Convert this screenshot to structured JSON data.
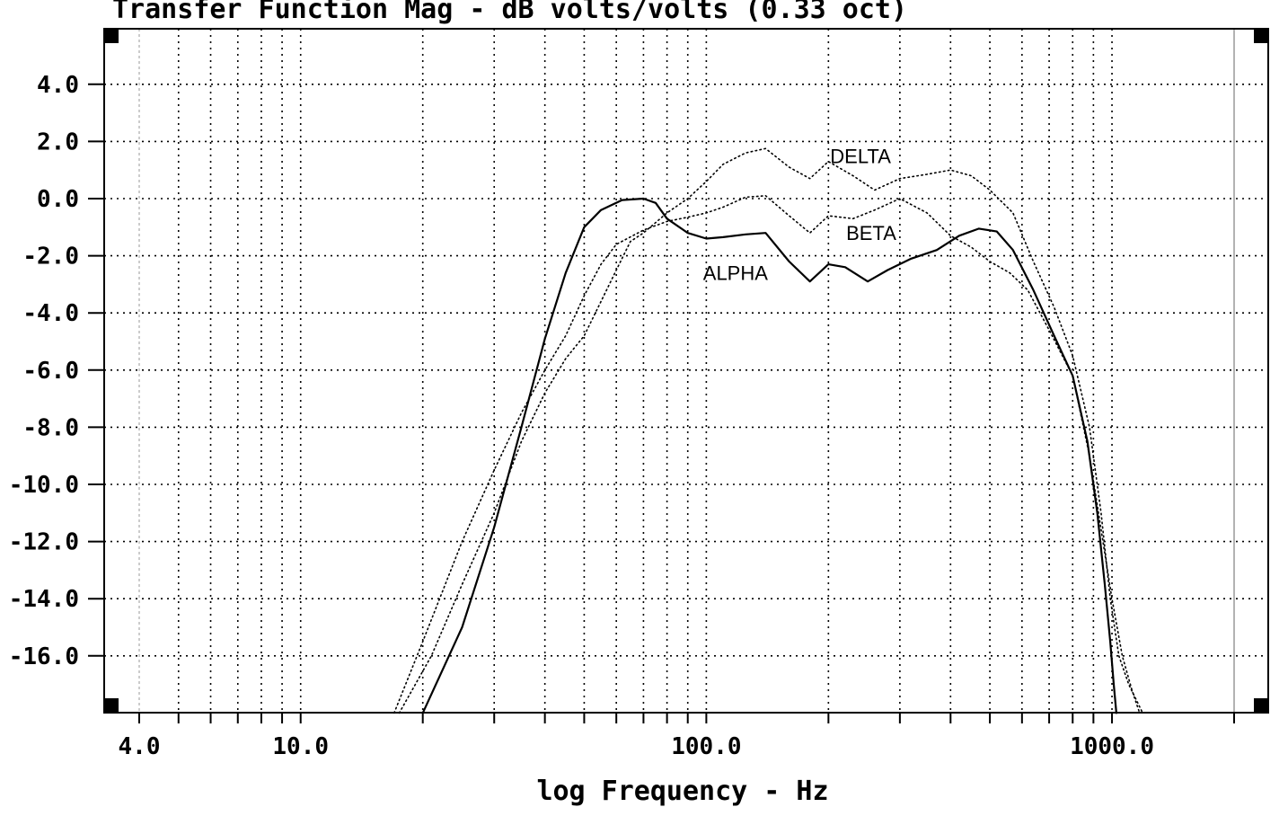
{
  "chart_data": {
    "type": "line",
    "title": "Transfer Function Mag - dB volts/volts (0.33 oct)",
    "xlabel": "log Frequency - Hz",
    "ylabel": "",
    "x_scale": "log",
    "xlim": [
      3.9,
      2300
    ],
    "ylim": [
      -18,
      5
    ],
    "grid": true,
    "xticks": [
      {
        "value": 4,
        "label": "4.0"
      },
      {
        "value": 10,
        "label": "10.0"
      },
      {
        "value": 100,
        "label": "100.0"
      },
      {
        "value": 1000,
        "label": "1000.0"
      }
    ],
    "yticks": [
      {
        "value": 4,
        "label": "4.0"
      },
      {
        "value": 2,
        "label": "2.0"
      },
      {
        "value": 0,
        "label": "0.0"
      },
      {
        "value": -2,
        "label": "-2.0"
      },
      {
        "value": -4,
        "label": "-4.0"
      },
      {
        "value": -6,
        "label": "-6.0"
      },
      {
        "value": -8,
        "label": "-8.0"
      },
      {
        "value": -10,
        "label": "-10.0"
      },
      {
        "value": -12,
        "label": "-12.0"
      },
      {
        "value": -14,
        "label": "-14.0"
      },
      {
        "value": -16,
        "label": "-16.0"
      }
    ],
    "series": [
      {
        "name": "ALPHA",
        "style": "solid",
        "label_at": [
          118,
          -2.6
        ],
        "points": [
          [
            20,
            -18
          ],
          [
            25,
            -15
          ],
          [
            30,
            -11.5
          ],
          [
            35,
            -8
          ],
          [
            40,
            -4.9
          ],
          [
            45,
            -2.6
          ],
          [
            50,
            -1
          ],
          [
            55,
            -0.4
          ],
          [
            62,
            -0.05
          ],
          [
            70,
            0
          ],
          [
            75,
            -0.15
          ],
          [
            80,
            -0.7
          ],
          [
            90,
            -1.2
          ],
          [
            100,
            -1.4
          ],
          [
            110,
            -1.35
          ],
          [
            125,
            -1.25
          ],
          [
            140,
            -1.2
          ],
          [
            160,
            -2.2
          ],
          [
            180,
            -2.9
          ],
          [
            200,
            -2.3
          ],
          [
            220,
            -2.4
          ],
          [
            250,
            -2.9
          ],
          [
            280,
            -2.5
          ],
          [
            320,
            -2.1
          ],
          [
            370,
            -1.8
          ],
          [
            420,
            -1.3
          ],
          [
            470,
            -1.05
          ],
          [
            520,
            -1.15
          ],
          [
            570,
            -1.8
          ],
          [
            640,
            -3.2
          ],
          [
            720,
            -4.8
          ],
          [
            800,
            -6.2
          ],
          [
            870,
            -8.5
          ],
          [
            920,
            -11
          ],
          [
            960,
            -13.5
          ],
          [
            990,
            -15.5
          ],
          [
            1010,
            -17
          ],
          [
            1025,
            -18
          ]
        ]
      },
      {
        "name": "BETA",
        "style": "dotted",
        "label_at": [
          255,
          -1.2
        ],
        "points": [
          [
            17,
            -18
          ],
          [
            20,
            -15.5
          ],
          [
            25,
            -12
          ],
          [
            30,
            -9.5
          ],
          [
            35,
            -7.5
          ],
          [
            40,
            -6
          ],
          [
            45,
            -4.8
          ],
          [
            50,
            -3.4
          ],
          [
            55,
            -2.3
          ],
          [
            60,
            -1.6
          ],
          [
            70,
            -1.1
          ],
          [
            80,
            -0.8
          ],
          [
            90,
            -0.65
          ],
          [
            100,
            -0.5
          ],
          [
            110,
            -0.3
          ],
          [
            125,
            0.05
          ],
          [
            140,
            0.1
          ],
          [
            160,
            -0.6
          ],
          [
            180,
            -1.2
          ],
          [
            200,
            -0.6
          ],
          [
            230,
            -0.7
          ],
          [
            260,
            -0.4
          ],
          [
            300,
            0
          ],
          [
            350,
            -0.5
          ],
          [
            400,
            -1.3
          ],
          [
            450,
            -1.7
          ],
          [
            500,
            -2.2
          ],
          [
            560,
            -2.6
          ],
          [
            620,
            -3.2
          ],
          [
            700,
            -4.6
          ],
          [
            800,
            -6.2
          ],
          [
            880,
            -9
          ],
          [
            950,
            -12
          ],
          [
            1000,
            -14
          ],
          [
            1060,
            -16
          ],
          [
            1120,
            -17.2
          ],
          [
            1170,
            -18
          ]
        ]
      },
      {
        "name": "DELTA",
        "style": "dotted",
        "label_at": [
          240,
          1.5
        ],
        "points": [
          [
            17.5,
            -18
          ],
          [
            21,
            -16
          ],
          [
            25,
            -13.5
          ],
          [
            30,
            -11
          ],
          [
            35,
            -8.5
          ],
          [
            40,
            -6.8
          ],
          [
            45,
            -5.6
          ],
          [
            50,
            -4.8
          ],
          [
            55,
            -3.6
          ],
          [
            60,
            -2.5
          ],
          [
            65,
            -1.5
          ],
          [
            70,
            -1.2
          ],
          [
            80,
            -0.5
          ],
          [
            90,
            0
          ],
          [
            100,
            0.6
          ],
          [
            110,
            1.2
          ],
          [
            125,
            1.6
          ],
          [
            140,
            1.75
          ],
          [
            160,
            1.1
          ],
          [
            180,
            0.7
          ],
          [
            200,
            1.3
          ],
          [
            230,
            0.8
          ],
          [
            260,
            0.3
          ],
          [
            300,
            0.7
          ],
          [
            350,
            0.85
          ],
          [
            400,
            1
          ],
          [
            450,
            0.8
          ],
          [
            500,
            0.3
          ],
          [
            570,
            -0.5
          ],
          [
            640,
            -2.2
          ],
          [
            720,
            -3.8
          ],
          [
            800,
            -5.5
          ],
          [
            880,
            -8
          ],
          [
            940,
            -11
          ],
          [
            990,
            -14
          ],
          [
            1040,
            -16
          ],
          [
            1100,
            -17
          ],
          [
            1190,
            -18
          ]
        ]
      }
    ]
  }
}
